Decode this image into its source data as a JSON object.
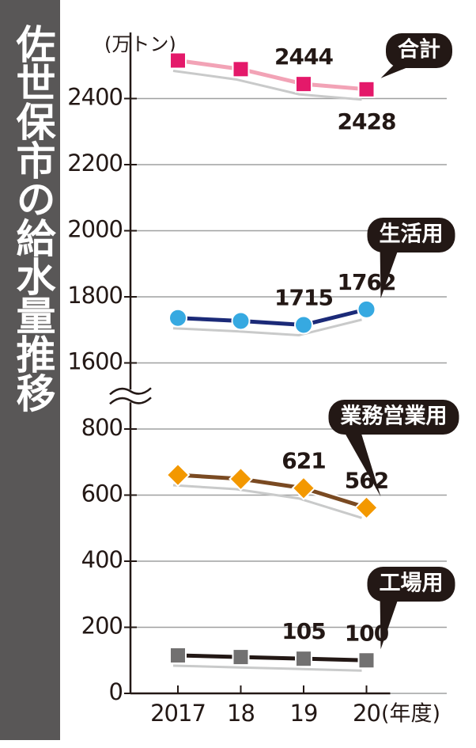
{
  "chart_data": {
    "type": "line",
    "title": "佐世保市の給水量推移",
    "y_unit": "(万トン)",
    "x_unit": "(年度)",
    "categories": [
      "2017",
      "18",
      "19",
      "20"
    ],
    "series": [
      {
        "name": "合計",
        "color": "#f2a3b6",
        "marker": "square",
        "marker_color": "#e4196a",
        "values": [
          2515,
          2489,
          2444,
          2428
        ],
        "value_labels": [
          null,
          null,
          "2444",
          "2428"
        ]
      },
      {
        "name": "生活用",
        "color": "#1b2a78",
        "marker": "circle",
        "marker_color": "#36a9e1",
        "values": [
          1736,
          1727,
          1715,
          1762
        ],
        "value_labels": [
          null,
          null,
          "1715",
          "1762"
        ]
      },
      {
        "name": "業務営業用",
        "color": "#7a4a22",
        "marker": "diamond",
        "marker_color": "#f39800",
        "values": [
          661,
          649,
          621,
          562
        ],
        "value_labels": [
          null,
          null,
          "621",
          "562"
        ]
      },
      {
        "name": "工場用",
        "color": "#231815",
        "marker": "square",
        "marker_color": "#727171",
        "values": [
          115,
          110,
          105,
          100
        ],
        "value_labels": [
          null,
          null,
          "105",
          "100"
        ]
      }
    ],
    "ylim": [
      0,
      2600
    ],
    "ybreak": [
      900,
      1500
    ],
    "yticks": [
      0,
      200,
      400,
      600,
      800,
      1600,
      1800,
      2000,
      2200,
      2400
    ],
    "grid": true
  }
}
